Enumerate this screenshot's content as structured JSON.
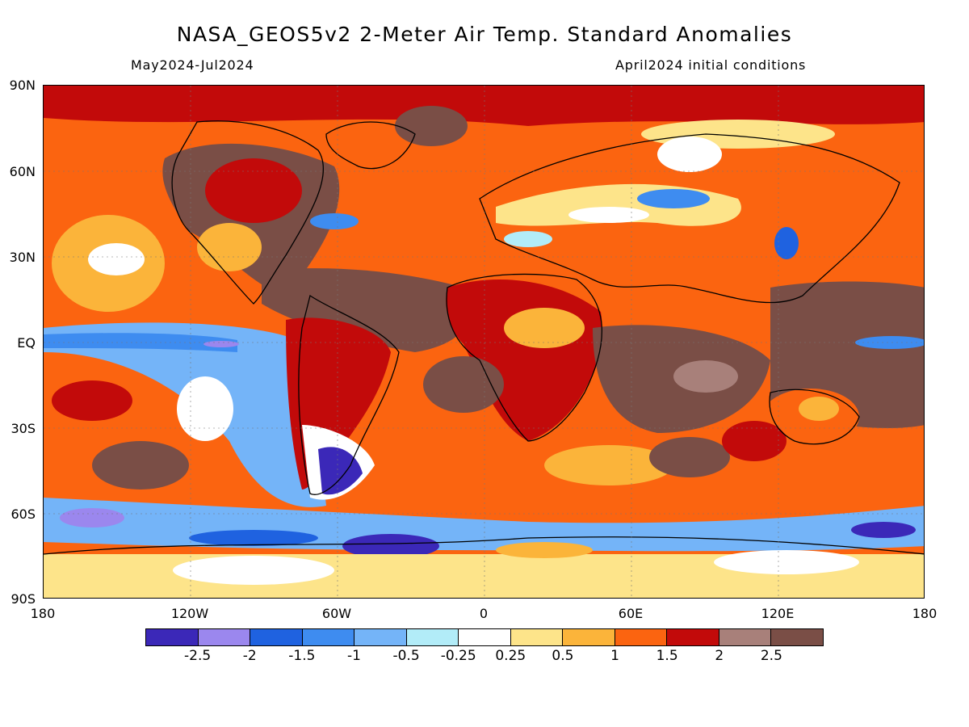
{
  "header": {
    "title": "NASA_GEOS5v2 2-Meter Air Temp. Standard Anomalies",
    "period": "May2024-Jul2024",
    "init": "April2024 initial conditions"
  },
  "map": {
    "lat_labels": [
      "90N",
      "60N",
      "30N",
      "EQ",
      "30S",
      "60S",
      "90S"
    ],
    "lon_labels": [
      "180",
      "120W",
      "60W",
      "0",
      "60E",
      "120E",
      "180"
    ]
  },
  "legend": {
    "colors": [
      "#3b28b8",
      "#9b87ee",
      "#1f62e0",
      "#3e8cf0",
      "#74b4f8",
      "#b2ecf8",
      "#ffffff",
      "#fde48a",
      "#fbb43a",
      "#fb6410",
      "#c20a0a",
      "#a8807a",
      "#7a4e46"
    ],
    "labels": [
      "-2.5",
      "-2",
      "-1.5",
      "-1",
      "-0.5",
      "-0.25",
      "0.25",
      "0.5",
      "1",
      "1.5",
      "2",
      "2.5"
    ]
  }
}
